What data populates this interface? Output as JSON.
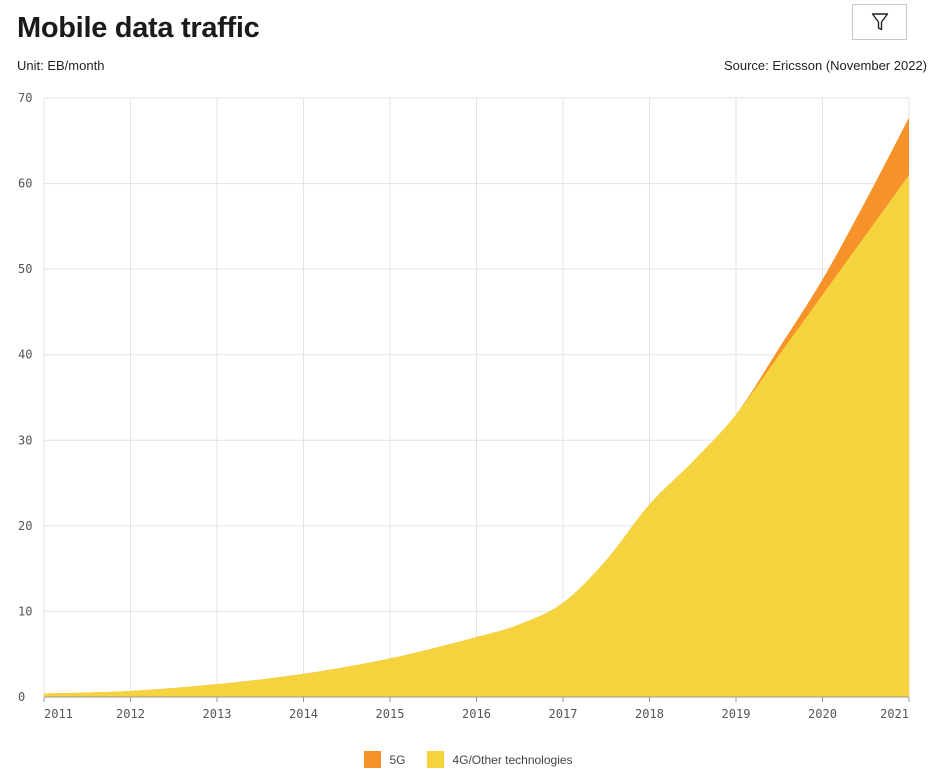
{
  "header": {
    "title": "Mobile data traffic",
    "unit": "Unit: EB/month",
    "source": "Source: Ericsson (November 2022)"
  },
  "toolbar": {
    "filter_icon": "filter-icon"
  },
  "colors": {
    "fiveG": "#f7922a",
    "fourG": "#f5d33e",
    "grid": "#e3e3e3",
    "axis": "#999999"
  },
  "chart_data": {
    "type": "area",
    "stacked": true,
    "title": "Mobile data traffic",
    "ylabel": "Unit: EB/month",
    "x": [
      2011,
      2012,
      2013,
      2014,
      2015,
      2016,
      2016.5,
      2017,
      2017.5,
      2018,
      2018.5,
      2019,
      2019.5,
      2020,
      2020.5,
      2021
    ],
    "series": [
      {
        "name": "4G/Other technologies",
        "values": [
          0.4,
          0.7,
          1.5,
          2.7,
          4.5,
          7.0,
          8.5,
          11.0,
          16.0,
          22.5,
          27.5,
          33.0,
          40.0,
          47.0,
          54.0,
          61.0
        ]
      },
      {
        "name": "5G",
        "values": [
          0,
          0,
          0,
          0,
          0,
          0,
          0,
          0,
          0,
          0,
          0,
          0,
          0.8,
          1.8,
          4.0,
          6.7
        ]
      }
    ],
    "xlim": [
      2011,
      2021
    ],
    "ylim": [
      0,
      70
    ],
    "yticks": [
      0,
      10,
      20,
      30,
      40,
      50,
      60,
      70
    ],
    "xticks": [
      2011,
      2012,
      2013,
      2014,
      2015,
      2016,
      2017,
      2018,
      2019,
      2020,
      2021
    ],
    "grid": true,
    "legend_position": "bottom-center"
  }
}
